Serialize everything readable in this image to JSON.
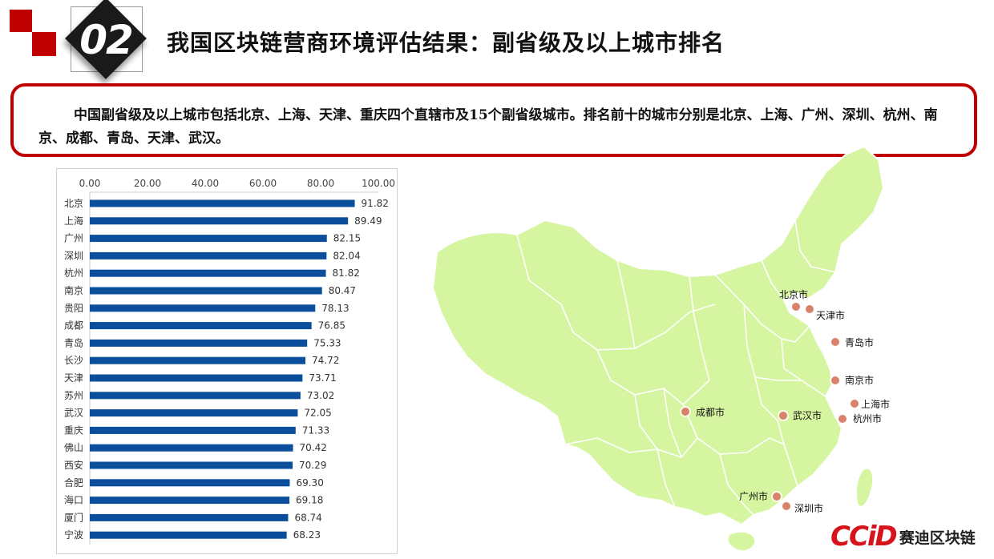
{
  "header": {
    "section_number": "02",
    "title": "我国区块链营商环境评估结果：副省级及以上城市排名"
  },
  "summary": {
    "text": "中国副省级及以上城市包括北京、上海、天津、重庆四个直辖市及15个副省级城市。排名前十的城市分别是北京、上海、广州、深圳、杭州、南京、成都、青岛、天津、武汉。"
  },
  "chart_data": {
    "type": "bar",
    "orientation": "horizontal",
    "categories": [
      "北京",
      "上海",
      "广州",
      "深圳",
      "杭州",
      "南京",
      "贵阳",
      "成都",
      "青岛",
      "长沙",
      "天津",
      "苏州",
      "武汉",
      "重庆",
      "佛山",
      "西安",
      "合肥",
      "海口",
      "厦门",
      "宁波"
    ],
    "values": [
      91.82,
      89.49,
      82.15,
      82.04,
      81.82,
      80.47,
      78.13,
      76.85,
      75.33,
      74.72,
      73.71,
      73.02,
      72.05,
      71.33,
      70.42,
      70.29,
      69.3,
      69.18,
      68.74,
      68.23
    ],
    "value_labels": [
      "91.82",
      "89.49",
      "82.15",
      "82.04",
      "81.82",
      "80.47",
      "78.13",
      "76.85",
      "75.33",
      "74.72",
      "73.71",
      "73.02",
      "72.05",
      "71.33",
      "70.42",
      "70.29",
      "69.30",
      "69.18",
      "68.74",
      "68.23"
    ],
    "xticks": [
      "0.00",
      "20.00",
      "40.00",
      "60.00",
      "80.00",
      "100.00"
    ],
    "xlim": [
      0,
      100
    ],
    "axis_position": "top",
    "grid": false,
    "bar_color": "#0b4f9c"
  },
  "map": {
    "land_color": "#d6f5a0",
    "marker_color": "#d9826b",
    "cities": [
      {
        "name": "北京市"
      },
      {
        "name": "天津市"
      },
      {
        "name": "青岛市"
      },
      {
        "name": "南京市"
      },
      {
        "name": "上海市"
      },
      {
        "name": "杭州市"
      },
      {
        "name": "成都市"
      },
      {
        "name": "武汉市"
      },
      {
        "name": "广州市"
      },
      {
        "name": "深圳市"
      }
    ]
  },
  "logo": {
    "mark": "CCiD",
    "name": "赛迪区块链"
  }
}
